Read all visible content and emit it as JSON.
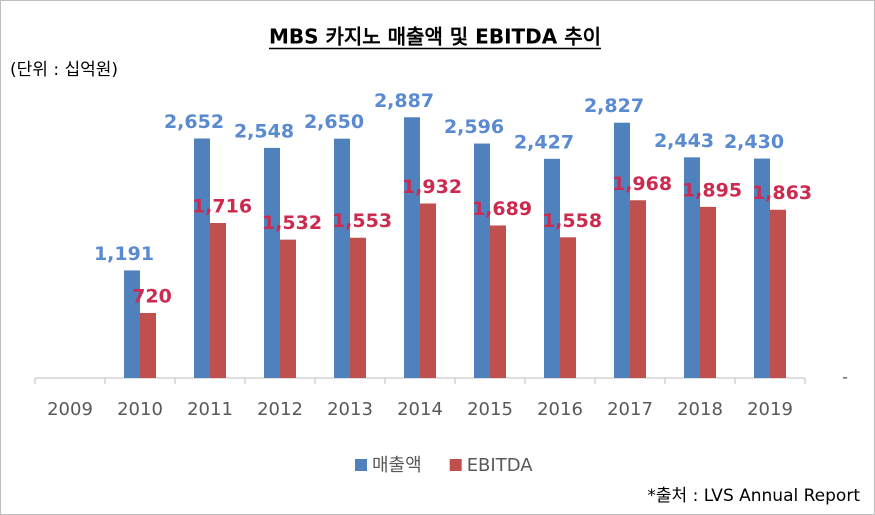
{
  "chart_data": {
    "type": "bar",
    "title": "MBS 카지노 매출액 및 EBITDA 추이",
    "subtitle": "(단위 : 십억원)",
    "source": "*출처 : LVS Annual Report",
    "categories": [
      "2009",
      "2010",
      "2011",
      "2012",
      "2013",
      "2014",
      "2015",
      "2016",
      "2017",
      "2018",
      "2019"
    ],
    "series": [
      {
        "name": "매출액",
        "color": "#4f81bd",
        "values": [
          null,
          1191,
          2652,
          2548,
          2650,
          2887,
          2596,
          2427,
          2827,
          2443,
          2430
        ],
        "value_labels": [
          null,
          "1,191",
          "2,652",
          "2,548",
          "2,650",
          "2,887",
          "2,596",
          "2,427",
          "2,827",
          "2,443",
          "2,430"
        ]
      },
      {
        "name": "EBITDA",
        "color": "#c0504d",
        "values": [
          null,
          720,
          1716,
          1532,
          1553,
          1932,
          1689,
          1558,
          1968,
          1895,
          1863
        ],
        "value_labels": [
          null,
          "720",
          "1,716",
          "1,532",
          "1,553",
          "1,932",
          "1,689",
          "1,558",
          "1,968",
          "1,895",
          "1,863"
        ]
      }
    ],
    "ylim": [
      0,
      3200
    ],
    "yticks": [
      {
        "value": 0,
        "label": "-"
      }
    ],
    "legend": "bottom"
  }
}
